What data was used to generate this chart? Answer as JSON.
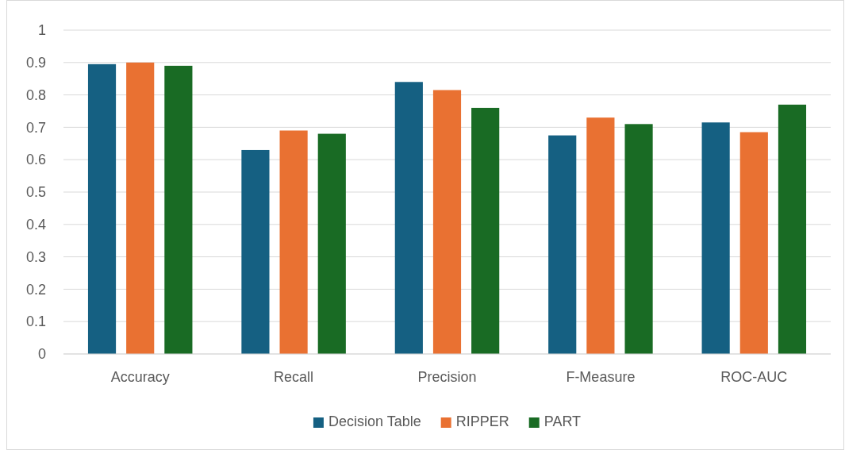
{
  "chart_data": {
    "type": "bar",
    "categories": [
      "Accuracy",
      "Recall",
      "Precision",
      "F-Measure",
      "ROC-AUC"
    ],
    "series": [
      {
        "name": "Decision Table",
        "color": "#156082",
        "values": [
          0.895,
          0.63,
          0.84,
          0.675,
          0.715
        ]
      },
      {
        "name": "RIPPER",
        "color": "#e97132",
        "values": [
          0.9,
          0.69,
          0.815,
          0.73,
          0.685
        ]
      },
      {
        "name": "PART",
        "color": "#196b24",
        "values": [
          0.89,
          0.68,
          0.76,
          0.71,
          0.77
        ]
      }
    ],
    "ylim": [
      0,
      1
    ],
    "yticks": [
      0,
      0.1,
      0.2,
      0.3,
      0.4,
      0.5,
      0.6,
      0.7,
      0.8,
      0.9,
      1
    ],
    "grid": "y",
    "legend": "bottom"
  }
}
